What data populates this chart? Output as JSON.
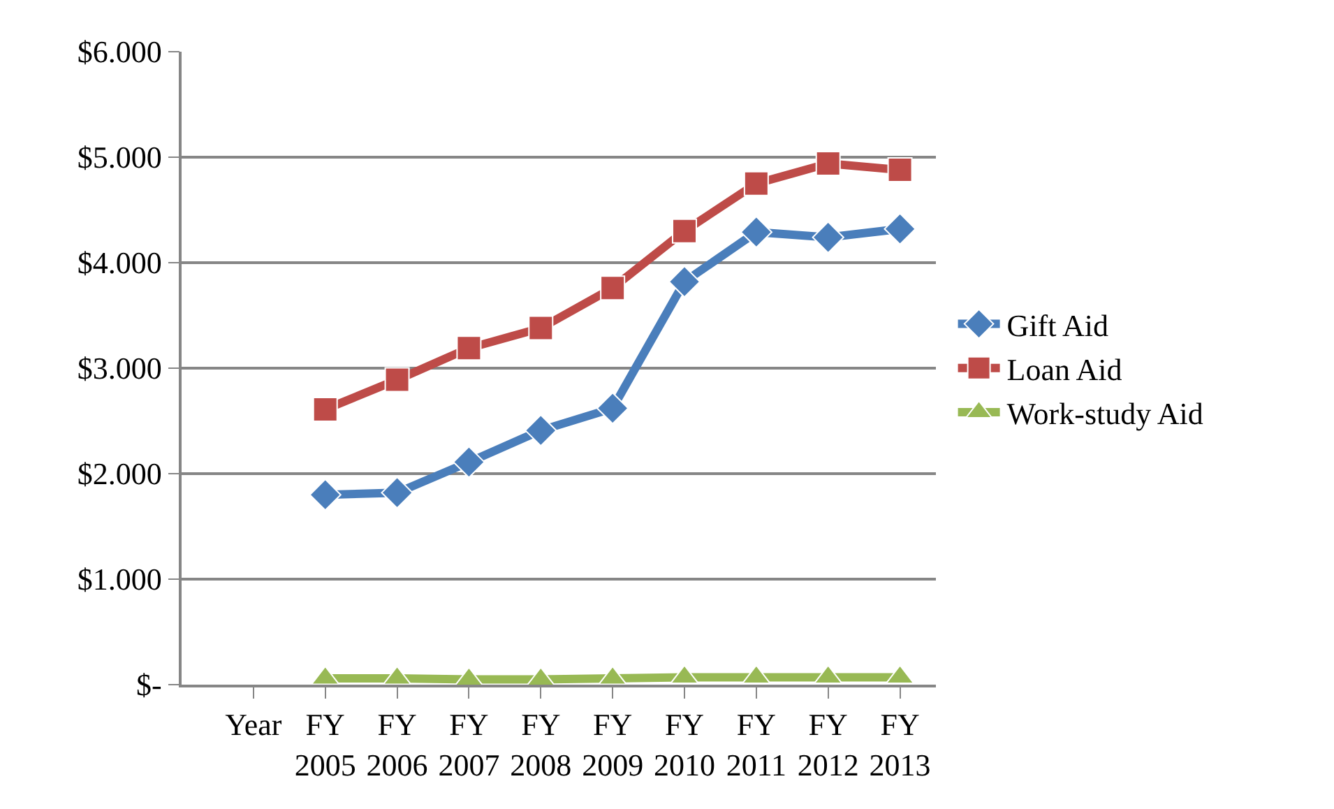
{
  "chart_data": {
    "type": "line",
    "categories": [
      "Year",
      "FY\n2005",
      "FY\n2006",
      "FY\n2007",
      "FY\n2008",
      "FY\n2009",
      "FY\n2010",
      "FY\n2011",
      "FY\n2012",
      "FY\n2013"
    ],
    "series": [
      {
        "name": "Gift Aid",
        "color": "#4a7ebb",
        "marker": "diamond",
        "values": [
          null,
          1800,
          1820,
          2110,
          2410,
          2620,
          3820,
          4290,
          4240,
          4320
        ]
      },
      {
        "name": "Loan Aid",
        "color": "#be4b48",
        "marker": "square",
        "values": [
          null,
          2610,
          2890,
          3190,
          3380,
          3760,
          4300,
          4750,
          4940,
          4880
        ]
      },
      {
        "name": "Work-study Aid",
        "color": "#98b954",
        "marker": "triangle",
        "values": [
          null,
          60,
          60,
          50,
          50,
          60,
          70,
          70,
          70,
          70
        ]
      }
    ],
    "ylim": [
      0,
      6000
    ],
    "yticks": [
      {
        "value": 0,
        "label": "$-"
      },
      {
        "value": 1000,
        "label": "$1.000"
      },
      {
        "value": 2000,
        "label": "$2.000"
      },
      {
        "value": 3000,
        "label": "$3.000"
      },
      {
        "value": 4000,
        "label": "$4.000"
      },
      {
        "value": 5000,
        "label": "$5.000"
      },
      {
        "value": 6000,
        "label": "$6.000"
      }
    ],
    "grid": "y",
    "legend": "right",
    "line_style": "solid"
  }
}
